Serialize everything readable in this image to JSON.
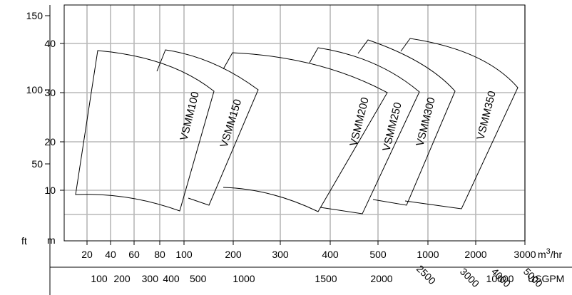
{
  "chart_data": {
    "type": "area",
    "title": "",
    "series": [
      {
        "name": "VSMM100"
      },
      {
        "name": "VSMM150"
      },
      {
        "name": "VSMM200"
      },
      {
        "name": "VSMM250"
      },
      {
        "name": "VSMM300"
      },
      {
        "name": "VSMM350"
      }
    ],
    "left_axes": {
      "ft": {
        "unit": "ft",
        "ticks": [
          "150",
          "100",
          "50"
        ]
      },
      "m": {
        "unit": "m",
        "ticks": [
          "40",
          "30",
          "20",
          "10"
        ]
      }
    },
    "bottom_axes": {
      "m3hr": {
        "unit_base": "m",
        "unit_sup": "3",
        "unit_rest": "/hr",
        "ticks": [
          "20",
          "40",
          "60",
          "80",
          "100",
          "200",
          "300",
          "400",
          "500",
          "1000",
          "2000",
          "3000"
        ]
      },
      "usgpm": {
        "unit": "USGPM",
        "ticks": [
          "100",
          "200",
          "300",
          "400",
          "500",
          "1000",
          "1500",
          "2000",
          "2500",
          "3000",
          "4000",
          "5000",
          "10000"
        ]
      }
    },
    "grid": true,
    "legend": "none"
  }
}
